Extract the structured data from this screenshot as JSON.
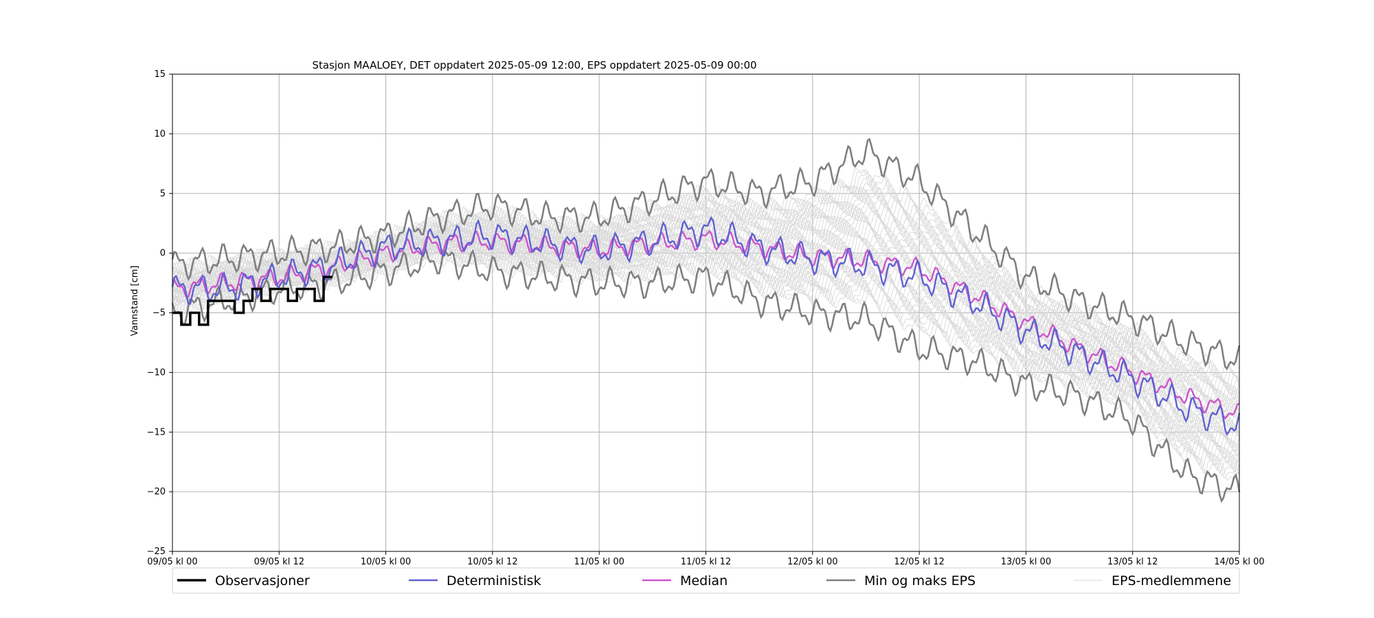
{
  "chart_data": {
    "type": "line",
    "title": "Stasjon MAALOEY, DET oppdatert 2025-05-09 12:00, EPS oppdatert 2025-05-09 00:00",
    "xlabel": "",
    "ylabel": "Vannstand [cm]",
    "ylim": [
      -25,
      15
    ],
    "yticks": [
      15,
      10,
      5,
      0,
      -5,
      -10,
      -15,
      -20,
      -25
    ],
    "x_unit": "hours since 09/05 kl 00",
    "xlim": [
      0,
      120
    ],
    "xticks": [
      {
        "x": 0,
        "label": "09/05 kl 00"
      },
      {
        "x": 12,
        "label": "09/05 kl 12"
      },
      {
        "x": 24,
        "label": "10/05 kl 00"
      },
      {
        "x": 36,
        "label": "10/05 kl 12"
      },
      {
        "x": 48,
        "label": "11/05 kl 00"
      },
      {
        "x": 60,
        "label": "11/05 kl 12"
      },
      {
        "x": 72,
        "label": "12/05 kl 00"
      },
      {
        "x": 84,
        "label": "12/05 kl 12"
      },
      {
        "x": 96,
        "label": "13/05 kl 00"
      },
      {
        "x": 108,
        "label": "13/05 kl 12"
      },
      {
        "x": 120,
        "label": "14/05 kl 00"
      }
    ],
    "grid": true,
    "legend_placement": "bottom",
    "series": [
      {
        "name": "Observasjoner",
        "color": "#000000",
        "x": [
          0,
          1,
          2,
          3,
          4,
          5,
          6,
          7,
          8,
          9,
          10,
          11,
          12,
          13,
          14,
          15,
          16,
          17,
          18
        ],
        "y": [
          -5,
          -6,
          -5,
          -6,
          -4,
          -4,
          -4,
          -5,
          -4,
          -3,
          -4,
          -3,
          -3,
          -4,
          -3,
          -3,
          -4,
          -2,
          -2
        ]
      },
      {
        "name": "Deterministisk",
        "color": "#6060d0",
        "x": [
          0,
          6,
          12,
          18,
          24,
          30,
          36,
          42,
          48,
          54,
          60,
          66,
          72,
          78,
          84,
          90,
          96,
          102,
          108,
          114,
          120
        ],
        "y": [
          -3,
          -3,
          -2,
          -1,
          0.5,
          1,
          1.5,
          0.8,
          0.2,
          1,
          2,
          0.5,
          -0.5,
          -1,
          -2,
          -4,
          -6.5,
          -8.5,
          -10.5,
          -13,
          -14.5
        ]
      },
      {
        "name": "Median",
        "color": "#cc55cc",
        "x": [
          0,
          6,
          12,
          18,
          24,
          30,
          36,
          42,
          48,
          54,
          60,
          66,
          72,
          78,
          84,
          90,
          96,
          102,
          108,
          114,
          120
        ],
        "y": [
          -3,
          -2.5,
          -2,
          -1.2,
          0,
          0.8,
          1,
          0.6,
          0.3,
          0.8,
          1.2,
          0.5,
          -0.3,
          -0.6,
          -1.3,
          -3.5,
          -5.8,
          -8,
          -10,
          -12,
          -13.5
        ]
      },
      {
        "name": "Min og maks EPS",
        "color": "#7f7f7f",
        "x": [
          0,
          6,
          12,
          18,
          24,
          30,
          36,
          42,
          48,
          54,
          60,
          66,
          72,
          78,
          84,
          90,
          96,
          102,
          108,
          114,
          120
        ],
        "y_max": [
          -1,
          -0.5,
          0,
          0.5,
          1.5,
          3,
          4,
          3,
          3,
          4.5,
          6,
          5,
          6,
          8.5,
          6,
          2,
          -2,
          -4,
          -5.5,
          -7.5,
          -9
        ],
        "y_min": [
          -5,
          -4,
          -3,
          -2.5,
          -1.5,
          -0.5,
          -1.5,
          -2,
          -2.5,
          -2.5,
          -2,
          -4,
          -5,
          -5.5,
          -8,
          -9,
          -11,
          -12,
          -14,
          -18.5,
          -20
        ]
      },
      {
        "name": "EPS-medlemmene",
        "color": "#d8d8d8"
      }
    ]
  }
}
